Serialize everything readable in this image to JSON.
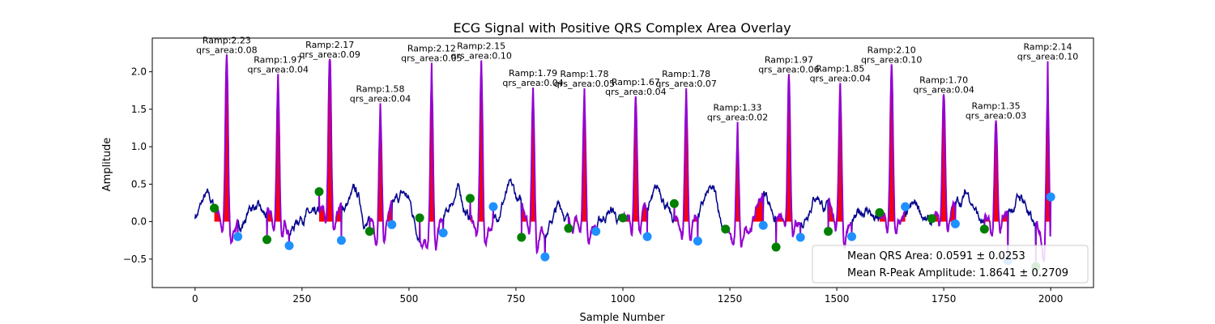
{
  "chart_data": {
    "type": "line",
    "title": "ECG Signal with Positive QRS Complex Area Overlay",
    "xlabel": "Sample Number",
    "ylabel": "Amplitude",
    "xlim": [
      -100,
      2100
    ],
    "ylim": [
      -0.88,
      2.45
    ],
    "xticks": [
      0,
      250,
      500,
      750,
      1000,
      1250,
      1500,
      1750,
      2000
    ],
    "yticks": [
      -0.5,
      0.0,
      0.5,
      1.0,
      1.5,
      2.0
    ],
    "xtick_labels": [
      "0",
      "250",
      "500",
      "750",
      "1000",
      "1250",
      "1500",
      "1750",
      "2000"
    ],
    "ytick_labels": [
      "−0.5",
      "0.0",
      "0.5",
      "1.0",
      "1.5",
      "2.0"
    ],
    "grid": false,
    "legend_position": "bottom-right",
    "legend": [
      "Mean QRS Area: 0.0591 ± 0.0253",
      "Mean R-Peak Amplitude: 1.8641 ± 0.2709"
    ],
    "colors": {
      "signal": "#00008b",
      "qrs_segment": "#9400d3",
      "area_fill": "#ff0000",
      "q_onset": "#008000",
      "s_offset": "#1e90ff"
    },
    "beats": [
      {
        "q": 45,
        "r": 74,
        "s": 100,
        "q_amp": 0.18,
        "r_amp": 2.23,
        "s_amp": -0.2,
        "area_label": "qrs_area:0.08",
        "ramp_label": "Ramp:2.23"
      },
      {
        "q": 168,
        "r": 194,
        "s": 220,
        "q_amp": -0.24,
        "r_amp": 1.97,
        "s_amp": -0.32,
        "area_label": "qrs_area:0.04",
        "ramp_label": "Ramp:1.97"
      },
      {
        "q": 290,
        "r": 315,
        "s": 342,
        "q_amp": 0.4,
        "r_amp": 2.17,
        "s_amp": -0.25,
        "area_label": "qrs_area:0.09",
        "ramp_label": "Ramp:2.17"
      },
      {
        "q": 408,
        "r": 433,
        "s": 460,
        "q_amp": -0.13,
        "r_amp": 1.58,
        "s_amp": -0.04,
        "area_label": "qrs_area:0.04",
        "ramp_label": "Ramp:1.58"
      },
      {
        "q": 525,
        "r": 553,
        "s": 580,
        "q_amp": 0.05,
        "r_amp": 2.12,
        "s_amp": -0.15,
        "area_label": "qrs_area:0.05",
        "ramp_label": "Ramp:2.12"
      },
      {
        "q": 643,
        "r": 669,
        "s": 697,
        "q_amp": 0.31,
        "r_amp": 2.15,
        "s_amp": 0.2,
        "area_label": "qrs_area:0.10",
        "ramp_label": "Ramp:2.15"
      },
      {
        "q": 763,
        "r": 790,
        "s": 818,
        "q_amp": -0.21,
        "r_amp": 1.79,
        "s_amp": -0.47,
        "area_label": "qrs_area:0.04",
        "ramp_label": "Ramp:1.79"
      },
      {
        "q": 873,
        "r": 910,
        "s": 937,
        "q_amp": -0.09,
        "r_amp": 1.78,
        "s_amp": -0.13,
        "area_label": "qrs_area:0.05",
        "ramp_label": "Ramp:1.78"
      },
      {
        "q": 1000,
        "r": 1030,
        "s": 1057,
        "q_amp": 0.05,
        "r_amp": 1.67,
        "s_amp": -0.2,
        "area_label": "qrs_area:0.04",
        "ramp_label": "Ramp:1.67"
      },
      {
        "q": 1120,
        "r": 1148,
        "s": 1175,
        "q_amp": 0.24,
        "r_amp": 1.78,
        "s_amp": -0.26,
        "area_label": "qrs_area:0.07",
        "ramp_label": "Ramp:1.78"
      },
      {
        "q": 1240,
        "r": 1268,
        "s": 1328,
        "q_amp": -0.1,
        "r_amp": 1.33,
        "s_amp": -0.05,
        "area_label": "qrs_area:0.02",
        "ramp_label": "Ramp:1.33"
      },
      {
        "q": 1358,
        "r": 1388,
        "s": 1415,
        "q_amp": -0.34,
        "r_amp": 1.97,
        "s_amp": -0.21,
        "area_label": "qrs_area:0.06",
        "ramp_label": "Ramp:1.97"
      },
      {
        "q": 1480,
        "r": 1508,
        "s": 1535,
        "q_amp": -0.13,
        "r_amp": 1.85,
        "s_amp": -0.2,
        "area_label": "qrs_area:0.04",
        "ramp_label": "Ramp:1.85"
      },
      {
        "q": 1600,
        "r": 1628,
        "s": 1660,
        "q_amp": 0.12,
        "r_amp": 2.1,
        "s_amp": 0.2,
        "area_label": "qrs_area:0.10",
        "ramp_label": "Ramp:2.10"
      },
      {
        "q": 1722,
        "r": 1750,
        "s": 1777,
        "q_amp": 0.04,
        "r_amp": 1.7,
        "s_amp": -0.03,
        "area_label": "qrs_area:0.04",
        "ramp_label": "Ramp:1.70"
      },
      {
        "q": 1845,
        "r": 1872,
        "s": 1900,
        "q_amp": -0.1,
        "r_amp": 1.35,
        "s_amp": -0.52,
        "area_label": "qrs_area:0.03",
        "ramp_label": "Ramp:1.35"
      },
      {
        "q": 1965,
        "r": 1993,
        "s": 2000,
        "q_amp": -0.6,
        "r_amp": 2.14,
        "s_amp": 0.33,
        "area_label": "qrs_area:0.10",
        "ramp_label": "Ramp:2.14"
      }
    ]
  }
}
